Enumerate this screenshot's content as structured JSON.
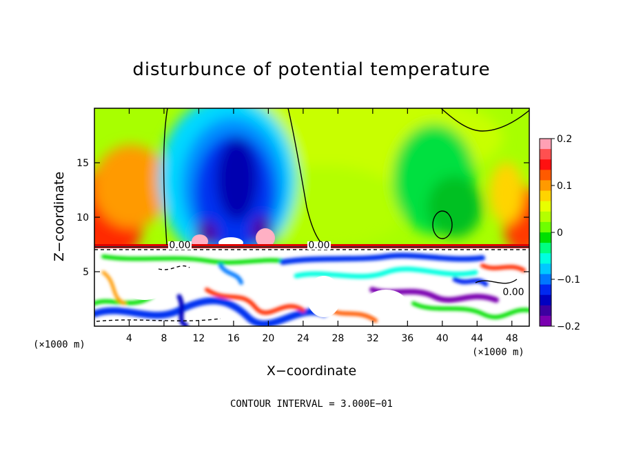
{
  "chart_data": {
    "type": "heatmap",
    "title": "disturbunce of potential temperature",
    "xlabel": "X−coordinate",
    "ylabel": "Z−coordinate",
    "x_unit": "(×1000 m)",
    "xlim": [
      0,
      50
    ],
    "ylim": [
      0,
      20
    ],
    "x_ticks": [
      4,
      8,
      12,
      16,
      20,
      24,
      28,
      32,
      36,
      40,
      44,
      48
    ],
    "y_ticks": [
      5,
      10,
      15
    ],
    "colorbar": {
      "range": [
        -0.2,
        0.2
      ],
      "tick_values": [
        0.2,
        0.1,
        0,
        -0.1,
        -0.2
      ],
      "tick_labels": [
        "0.2",
        "0.1",
        "0",
        "−0.1",
        "−0.2"
      ],
      "colors": [
        "#ffa0b4",
        "#ff5050",
        "#ff1010",
        "#ff5a00",
        "#ff9a00",
        "#ffd400",
        "#e8ff00",
        "#b4ff00",
        "#6eff00",
        "#00e000",
        "#00ff80",
        "#00ffe0",
        "#00c8ff",
        "#0078ff",
        "#0028f0",
        "#0000c0",
        "#3c00a0",
        "#7a00b0"
      ]
    },
    "contour_labels": [
      "0.00",
      "0.00",
      "0.00"
    ],
    "contour_interval_text": "CONTOUR INTERVAL = 3.000E−01"
  }
}
